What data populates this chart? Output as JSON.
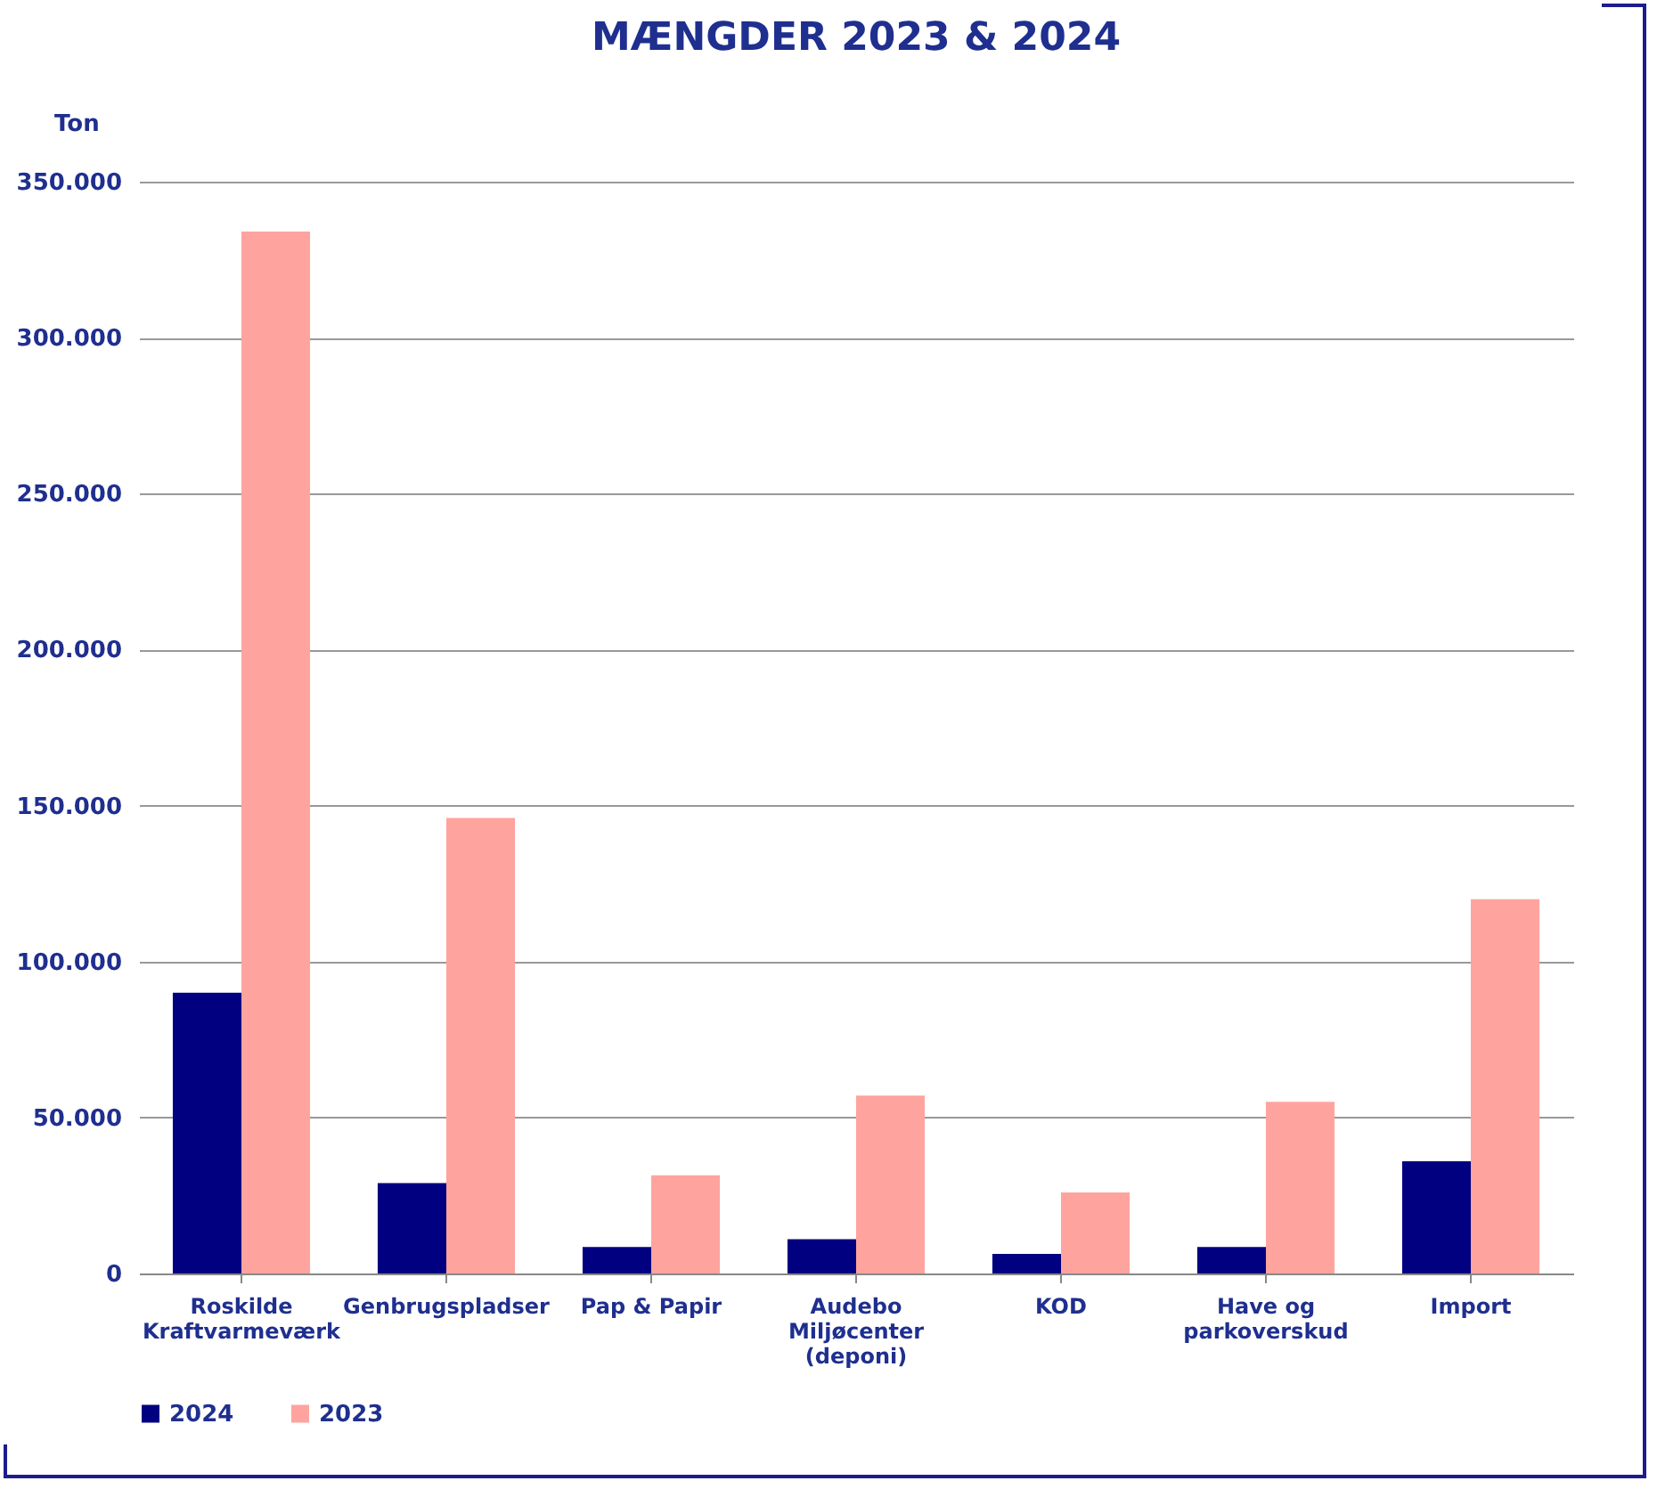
{
  "chart_data": {
    "type": "bar",
    "title": "MÆNGDER 2023 & 2024",
    "ylabel": "Ton",
    "categories": [
      "Roskilde Kraftvarmeværk",
      "Genbrugspladser",
      "Pap & Papir",
      "Audebo Miljøcenter (deponi)",
      "KOD",
      "Have og parkoverskud",
      "Import"
    ],
    "series": [
      {
        "name": "2024",
        "color": "#000080",
        "values": [
          90000,
          29000,
          8500,
          11000,
          6300,
          8500,
          36000
        ]
      },
      {
        "name": "2023",
        "color": "#ffa39e",
        "values": [
          334000,
          146000,
          31500,
          57000,
          26000,
          55000,
          120000
        ]
      }
    ],
    "ylim": [
      0,
      350000
    ],
    "yticks": [
      {
        "value": 0,
        "label": "0"
      },
      {
        "value": 50000,
        "label": "50.000"
      },
      {
        "value": 100000,
        "label": "100.000"
      },
      {
        "value": 150000,
        "label": "150.000"
      },
      {
        "value": 200000,
        "label": "200.000"
      },
      {
        "value": 250000,
        "label": "250.000"
      },
      {
        "value": 300000,
        "label": "300.000"
      },
      {
        "value": 350000,
        "label": "350.000"
      }
    ],
    "grid": "y",
    "legend": "bottom"
  }
}
